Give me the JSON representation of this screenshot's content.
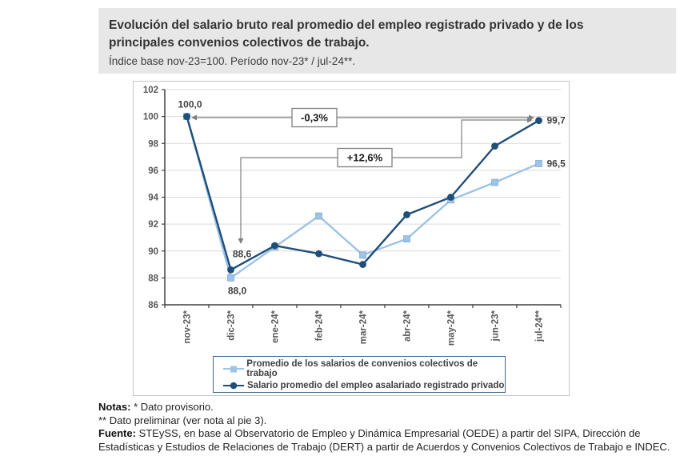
{
  "header": {
    "title": "Evolución del salario bruto real promedio del empleo registrado privado y de los principales convenios colectivos de trabajo.",
    "subtitle": "Índice base nov-23=100. Período nov-23* / jul-24**."
  },
  "chart_data": {
    "type": "line",
    "categories": [
      "nov-23*",
      "dic-23*",
      "ene-24*",
      "feb-24*",
      "mar-24*",
      "abr-24*",
      "may-24*",
      "jun-23*",
      "jul-24**"
    ],
    "series": [
      {
        "name": "Promedio de los salarios de convenios colectivos de trabajo",
        "color": "#9DC3E6",
        "marker": "square",
        "values": [
          100.0,
          88.0,
          90.3,
          92.6,
          89.7,
          90.9,
          93.8,
          95.1,
          96.5
        ]
      },
      {
        "name": "Salario promedio del empleo asalariado registrado privado",
        "color": "#1F4E79",
        "marker": "circle",
        "values": [
          100.0,
          88.6,
          90.4,
          89.8,
          89.0,
          92.7,
          94.0,
          97.8,
          99.7
        ]
      }
    ],
    "ylim": [
      86,
      102
    ],
    "ytick_step": 2,
    "grid": true,
    "legend_position": "bottom-inside",
    "point_labels": [
      {
        "series": 1,
        "index": 0,
        "text": "100,0",
        "position": "above"
      },
      {
        "series": 1,
        "index": 1,
        "text": "88,6",
        "position": "above-right"
      },
      {
        "series": 0,
        "index": 1,
        "text": "88,0",
        "position": "below"
      },
      {
        "series": 1,
        "index": 8,
        "text": "99,7",
        "position": "right"
      },
      {
        "series": 0,
        "index": 8,
        "text": "96,5",
        "position": "right"
      }
    ],
    "annotations": [
      {
        "label": "-0,3%",
        "from": "nov-23*",
        "to": "jul-24**"
      },
      {
        "label": "+12,6%",
        "from": "dic-23*",
        "to": "jul-24**"
      }
    ],
    "colors": {
      "grid": "#D9D9D9",
      "axis": "#404040",
      "axis_label": "#595959",
      "data_label": "#404040",
      "annotation_line": "#808080",
      "annotation_border": "#7f7f7f",
      "annotation_text": "#1a1a1a"
    }
  },
  "notes": {
    "label": "Notas:",
    "note1": " * Dato provisorio.",
    "note2": "** Dato preliminar (ver nota al pie 3).",
    "source_label": "Fuente:",
    "source_text": " STEySS, en base al Observatorio de Empleo y Dinámica Empresarial (OEDE) a partir del SIPA, Dirección de Estadísticas y Estudios de Relaciones de Trabajo (DERT) a partir de Acuerdos y Convenios Colectivos de Trabajo e INDEC."
  }
}
